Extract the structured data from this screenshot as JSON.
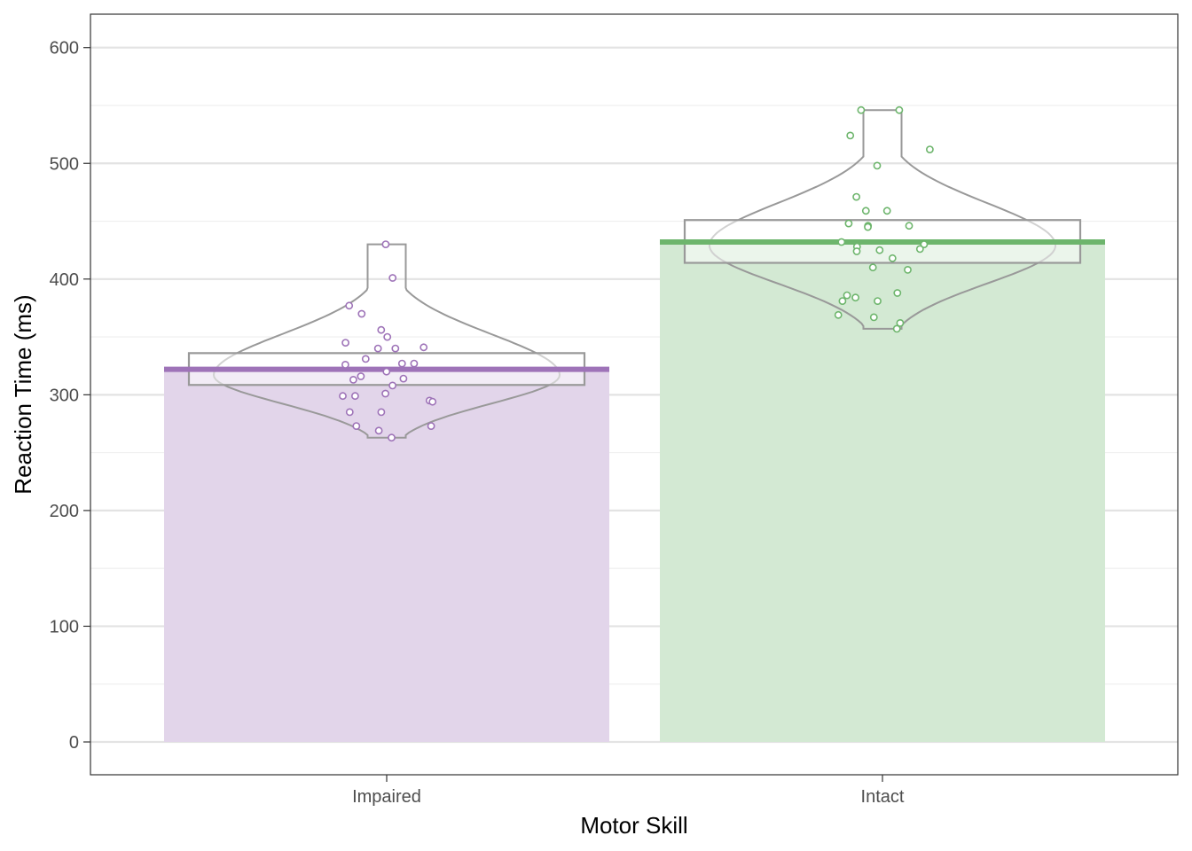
{
  "chart_data": {
    "type": "bar",
    "title": "",
    "xlabel": "Motor Skill",
    "ylabel": "Reaction Time (ms)",
    "ylim": [
      -28,
      628
    ],
    "yticks": [
      0,
      100,
      200,
      300,
      400,
      500,
      600
    ],
    "ytick_labels": [
      "0",
      "100",
      "200",
      "300",
      "400",
      "500",
      "600"
    ],
    "grid": true,
    "legend": "none",
    "categories": [
      "Impaired",
      "Intact"
    ],
    "values": [
      322,
      432
    ],
    "colors": [
      "#9E73B8",
      "#6DB56C"
    ],
    "ci": [
      {
        "low": 308.5,
        "high": 336
      },
      {
        "low": 414,
        "high": 451
      }
    ],
    "points": [
      [
        430,
        401,
        377,
        370,
        356,
        350,
        345,
        341,
        340,
        340,
        331,
        327,
        327,
        326,
        320,
        316,
        314,
        313,
        308,
        301,
        299,
        299,
        295,
        294,
        285,
        285,
        273,
        273,
        269,
        263
      ],
      [
        546,
        546,
        524,
        512,
        498,
        471,
        459,
        459,
        448,
        446,
        446,
        445,
        432,
        430,
        428,
        426,
        425,
        424,
        418,
        410,
        408,
        388,
        386,
        384,
        381,
        381,
        369,
        367,
        362,
        357
      ]
    ],
    "violins": [
      {
        "min": 263,
        "max": 430,
        "mode": 317
      },
      {
        "min": 357,
        "max": 546,
        "mode": 429
      }
    ]
  }
}
